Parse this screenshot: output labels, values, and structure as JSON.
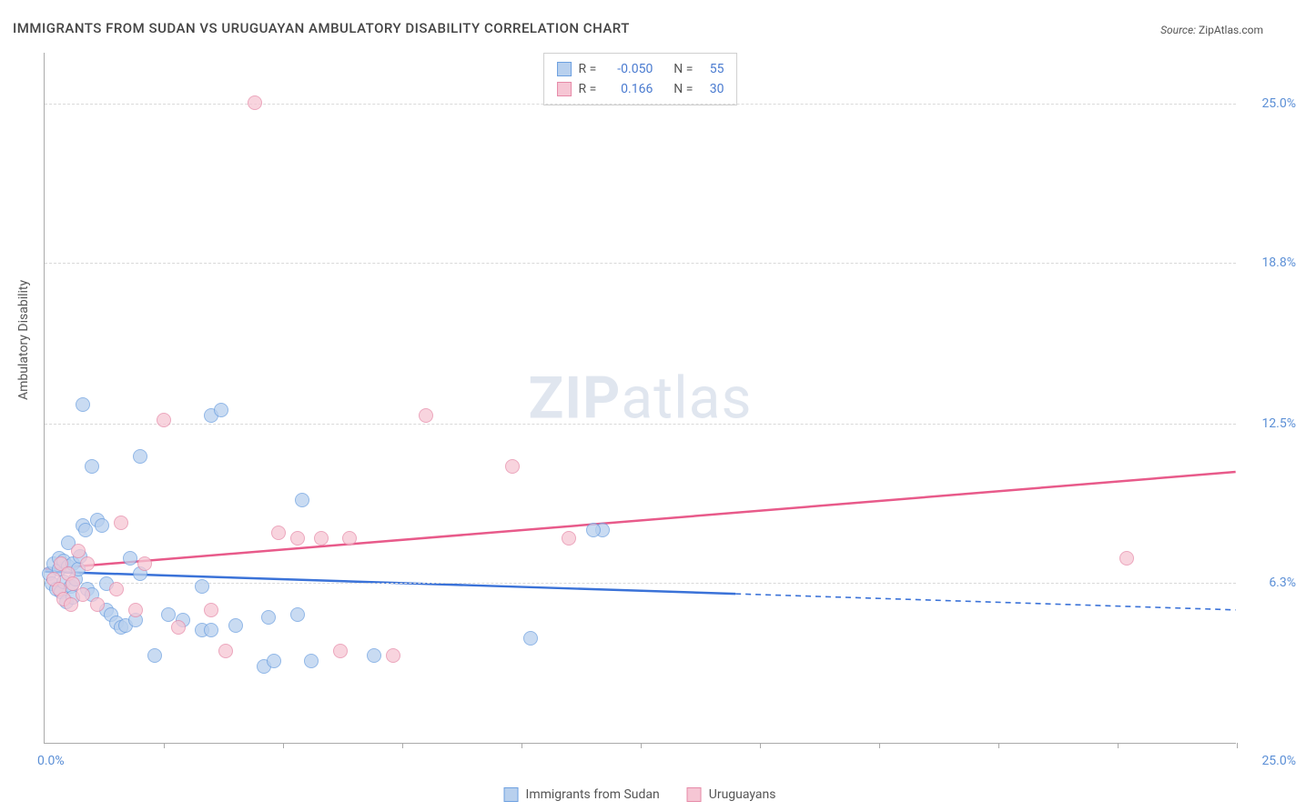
{
  "title": "IMMIGRANTS FROM SUDAN VS URUGUAYAN AMBULATORY DISABILITY CORRELATION CHART",
  "source_label": "Source:",
  "source_value": "ZipAtlas.com",
  "ylabel": "Ambulatory Disability",
  "watermark_bold": "ZIP",
  "watermark_light": "atlas",
  "chart": {
    "type": "scatter",
    "xlim": [
      0,
      25
    ],
    "ylim": [
      0,
      27
    ],
    "background_color": "#ffffff",
    "grid_color": "#d9d9d9",
    "yticks": [
      {
        "v": 6.3,
        "label": "6.3%"
      },
      {
        "v": 12.5,
        "label": "12.5%"
      },
      {
        "v": 18.8,
        "label": "18.8%"
      },
      {
        "v": 25.0,
        "label": "25.0%"
      }
    ],
    "xticks_at": [
      2.5,
      5.0,
      7.5,
      10.0,
      12.5,
      15.0,
      17.5,
      20.0,
      22.5,
      25.0
    ],
    "x_origin_label": "0.0%",
    "x_end_label": "25.0%",
    "point_radius": 8,
    "series": [
      {
        "name": "Immigrants from Sudan",
        "fill": "#b8d0ee",
        "stroke": "#6da0e0",
        "R": "-0.050",
        "N": "55",
        "trend": {
          "x1": 0,
          "y1": 6.7,
          "x2": 25,
          "y2": 5.2,
          "solid_until_x": 14.5,
          "color": "#3a72d8"
        },
        "points": [
          [
            0.1,
            6.6
          ],
          [
            0.15,
            6.2
          ],
          [
            0.2,
            7.0
          ],
          [
            0.25,
            6.0
          ],
          [
            0.3,
            6.8
          ],
          [
            0.3,
            7.2
          ],
          [
            0.35,
            5.9
          ],
          [
            0.4,
            6.3
          ],
          [
            0.4,
            7.1
          ],
          [
            0.45,
            5.5
          ],
          [
            0.5,
            6.9
          ],
          [
            0.5,
            7.8
          ],
          [
            0.55,
            6.1
          ],
          [
            0.6,
            7.0
          ],
          [
            0.6,
            5.7
          ],
          [
            0.65,
            6.4
          ],
          [
            0.7,
            6.8
          ],
          [
            0.75,
            7.3
          ],
          [
            0.8,
            13.2
          ],
          [
            0.8,
            8.5
          ],
          [
            0.85,
            8.3
          ],
          [
            0.9,
            6.0
          ],
          [
            1.0,
            5.8
          ],
          [
            1.0,
            10.8
          ],
          [
            1.1,
            8.7
          ],
          [
            1.2,
            8.5
          ],
          [
            1.3,
            5.2
          ],
          [
            1.3,
            6.2
          ],
          [
            1.4,
            5.0
          ],
          [
            1.5,
            4.7
          ],
          [
            1.6,
            4.5
          ],
          [
            1.7,
            4.6
          ],
          [
            1.8,
            7.2
          ],
          [
            1.9,
            4.8
          ],
          [
            2.0,
            6.6
          ],
          [
            2.0,
            11.2
          ],
          [
            2.3,
            3.4
          ],
          [
            2.6,
            5.0
          ],
          [
            2.9,
            4.8
          ],
          [
            3.3,
            4.4
          ],
          [
            3.3,
            6.1
          ],
          [
            3.5,
            4.4
          ],
          [
            3.5,
            12.8
          ],
          [
            3.7,
            13.0
          ],
          [
            4.0,
            4.6
          ],
          [
            4.6,
            3.0
          ],
          [
            4.7,
            4.9
          ],
          [
            4.8,
            3.2
          ],
          [
            5.3,
            5.0
          ],
          [
            5.4,
            9.5
          ],
          [
            5.6,
            3.2
          ],
          [
            6.9,
            3.4
          ],
          [
            10.2,
            4.1
          ],
          [
            11.7,
            8.3
          ],
          [
            11.5,
            8.3
          ]
        ]
      },
      {
        "name": "Uruguayans",
        "fill": "#f6c6d4",
        "stroke": "#e68aa8",
        "R": "0.166",
        "N": "30",
        "trend": {
          "x1": 0,
          "y1": 6.8,
          "x2": 25,
          "y2": 10.6,
          "solid_until_x": 25,
          "color": "#e85a8a"
        },
        "points": [
          [
            0.2,
            6.4
          ],
          [
            0.3,
            6.0
          ],
          [
            0.35,
            7.0
          ],
          [
            0.4,
            5.6
          ],
          [
            0.5,
            6.6
          ],
          [
            0.55,
            5.4
          ],
          [
            0.6,
            6.2
          ],
          [
            0.7,
            7.5
          ],
          [
            0.8,
            5.8
          ],
          [
            0.9,
            7.0
          ],
          [
            1.1,
            5.4
          ],
          [
            1.5,
            6.0
          ],
          [
            1.6,
            8.6
          ],
          [
            1.9,
            5.2
          ],
          [
            2.1,
            7.0
          ],
          [
            2.5,
            12.6
          ],
          [
            2.8,
            4.5
          ],
          [
            3.5,
            5.2
          ],
          [
            3.8,
            3.6
          ],
          [
            4.4,
            25.0
          ],
          [
            4.9,
            8.2
          ],
          [
            5.3,
            8.0
          ],
          [
            5.8,
            8.0
          ],
          [
            6.2,
            3.6
          ],
          [
            6.4,
            8.0
          ],
          [
            7.3,
            3.4
          ],
          [
            8.0,
            12.8
          ],
          [
            9.8,
            10.8
          ],
          [
            11.0,
            8.0
          ],
          [
            22.7,
            7.2
          ]
        ]
      }
    ]
  },
  "stats_labels": {
    "R": "R =",
    "N": "N ="
  }
}
